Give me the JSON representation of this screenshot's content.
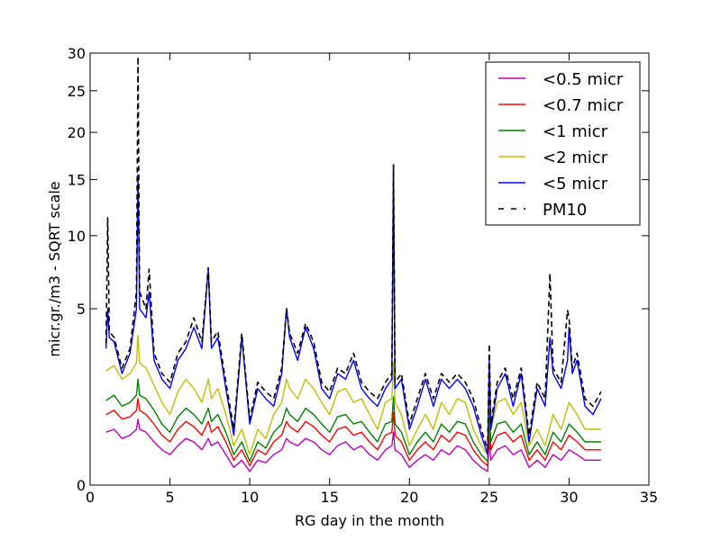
{
  "chart_data": {
    "type": "line",
    "title": "",
    "xlabel": "RG day in the month",
    "ylabel": "micr.gr./m3 - SQRT scale",
    "y_scale": "sqrt",
    "xlim": [
      0,
      35
    ],
    "ylim": [
      0,
      30
    ],
    "x_ticks": [
      0,
      5,
      10,
      15,
      20,
      25,
      30,
      35
    ],
    "y_ticks": [
      0,
      5,
      10,
      15,
      20,
      25,
      30
    ],
    "grid": false,
    "legend_position": "top-right",
    "series": [
      {
        "name": "<0.5 micr",
        "color": "#bf00bf",
        "dash": "solid",
        "x": [
          1.0,
          1.5,
          2.0,
          2.5,
          2.9,
          3.0,
          3.1,
          3.5,
          4.0,
          4.5,
          5.0,
          5.5,
          6.0,
          6.5,
          7.0,
          7.4,
          7.6,
          8.0,
          8.5,
          9.0,
          9.5,
          10.0,
          10.5,
          11.0,
          11.5,
          12.0,
          12.3,
          12.5,
          13.0,
          13.5,
          14.0,
          14.5,
          15.0,
          15.5,
          16.0,
          16.5,
          17.0,
          17.5,
          18.0,
          18.5,
          18.9,
          19.0,
          19.1,
          19.5,
          20.0,
          20.5,
          21.0,
          21.5,
          22.0,
          22.5,
          23.0,
          23.5,
          24.0,
          24.5,
          24.9,
          25.0,
          25.1,
          25.5,
          26.0,
          26.5,
          27.0,
          27.5,
          28.0,
          28.5,
          29.0,
          29.5,
          30.0,
          30.5,
          31.0,
          31.5,
          32.0
        ],
        "y": [
          0.45,
          0.5,
          0.35,
          0.4,
          0.5,
          0.7,
          0.5,
          0.45,
          0.3,
          0.2,
          0.15,
          0.25,
          0.35,
          0.3,
          0.2,
          0.35,
          0.25,
          0.3,
          0.15,
          0.05,
          0.1,
          0.03,
          0.1,
          0.08,
          0.15,
          0.2,
          0.35,
          0.3,
          0.25,
          0.35,
          0.3,
          0.2,
          0.15,
          0.25,
          0.3,
          0.2,
          0.25,
          0.15,
          0.1,
          0.2,
          0.25,
          0.45,
          0.2,
          0.15,
          0.05,
          0.1,
          0.15,
          0.1,
          0.2,
          0.15,
          0.25,
          0.2,
          0.1,
          0.05,
          0.03,
          0.35,
          0.1,
          0.2,
          0.25,
          0.15,
          0.2,
          0.05,
          0.1,
          0.05,
          0.15,
          0.1,
          0.2,
          0.15,
          0.1,
          0.1,
          0.1
        ]
      },
      {
        "name": "<0.7 micr",
        "color": "#ff0000",
        "dash": "solid",
        "x": [
          1.0,
          1.5,
          2.0,
          2.5,
          2.9,
          3.0,
          3.1,
          3.5,
          4.0,
          4.5,
          5.0,
          5.5,
          6.0,
          6.5,
          7.0,
          7.4,
          7.6,
          8.0,
          8.5,
          9.0,
          9.5,
          10.0,
          10.5,
          11.0,
          11.5,
          12.0,
          12.3,
          12.5,
          13.0,
          13.5,
          14.0,
          14.5,
          15.0,
          15.5,
          16.0,
          16.5,
          17.0,
          17.5,
          18.0,
          18.5,
          18.9,
          19.0,
          19.1,
          19.5,
          20.0,
          20.5,
          21.0,
          21.5,
          22.0,
          22.5,
          23.0,
          23.5,
          24.0,
          24.5,
          24.9,
          25.0,
          25.1,
          25.5,
          26.0,
          26.5,
          27.0,
          27.5,
          28.0,
          28.5,
          29.0,
          29.5,
          30.0,
          30.5,
          31.0,
          31.5,
          32.0
        ],
        "y": [
          0.8,
          0.9,
          0.7,
          0.75,
          0.9,
          1.2,
          0.9,
          0.8,
          0.6,
          0.4,
          0.3,
          0.5,
          0.65,
          0.55,
          0.4,
          0.65,
          0.45,
          0.55,
          0.3,
          0.1,
          0.2,
          0.06,
          0.2,
          0.15,
          0.3,
          0.4,
          0.65,
          0.55,
          0.45,
          0.65,
          0.55,
          0.4,
          0.3,
          0.5,
          0.55,
          0.4,
          0.45,
          0.3,
          0.2,
          0.4,
          0.45,
          0.85,
          0.4,
          0.3,
          0.1,
          0.2,
          0.3,
          0.2,
          0.4,
          0.3,
          0.45,
          0.4,
          0.2,
          0.1,
          0.06,
          0.65,
          0.2,
          0.4,
          0.45,
          0.3,
          0.4,
          0.1,
          0.2,
          0.1,
          0.3,
          0.2,
          0.4,
          0.3,
          0.2,
          0.2,
          0.2
        ]
      },
      {
        "name": "<1 micr",
        "color": "#008000",
        "dash": "solid",
        "x": [
          1.0,
          1.5,
          2.0,
          2.5,
          2.9,
          3.0,
          3.1,
          3.5,
          4.0,
          4.5,
          5.0,
          5.5,
          6.0,
          6.5,
          7.0,
          7.4,
          7.6,
          8.0,
          8.5,
          9.0,
          9.5,
          10.0,
          10.5,
          11.0,
          11.5,
          12.0,
          12.3,
          12.5,
          13.0,
          13.5,
          14.0,
          14.5,
          15.0,
          15.5,
          16.0,
          16.5,
          17.0,
          17.5,
          18.0,
          18.5,
          18.9,
          19.0,
          19.1,
          19.5,
          20.0,
          20.5,
          21.0,
          21.5,
          22.0,
          22.5,
          23.0,
          23.5,
          24.0,
          24.5,
          24.9,
          25.0,
          25.1,
          25.5,
          26.0,
          26.5,
          27.0,
          27.5,
          28.0,
          28.5,
          29.0,
          29.5,
          30.0,
          30.5,
          31.0,
          31.5,
          32.0
        ],
        "y": [
          1.15,
          1.3,
          1.0,
          1.1,
          1.3,
          1.8,
          1.3,
          1.2,
          0.9,
          0.6,
          0.45,
          0.75,
          0.95,
          0.8,
          0.6,
          0.95,
          0.65,
          0.8,
          0.45,
          0.15,
          0.3,
          0.09,
          0.3,
          0.22,
          0.45,
          0.6,
          0.95,
          0.8,
          0.65,
          0.95,
          0.8,
          0.6,
          0.45,
          0.75,
          0.8,
          0.6,
          0.65,
          0.45,
          0.3,
          0.6,
          0.65,
          1.25,
          0.6,
          0.45,
          0.15,
          0.3,
          0.45,
          0.3,
          0.6,
          0.45,
          0.65,
          0.6,
          0.3,
          0.15,
          0.09,
          0.95,
          0.3,
          0.6,
          0.65,
          0.45,
          0.6,
          0.15,
          0.3,
          0.15,
          0.45,
          0.3,
          0.6,
          0.45,
          0.3,
          0.3,
          0.3
        ]
      },
      {
        "name": "<2 micr",
        "color": "#bfbf00",
        "dash": "solid",
        "x": [
          1.0,
          1.5,
          2.0,
          2.5,
          2.9,
          3.0,
          3.1,
          3.5,
          4.0,
          4.5,
          5.0,
          5.5,
          6.0,
          6.5,
          7.0,
          7.4,
          7.6,
          8.0,
          8.5,
          9.0,
          9.5,
          10.0,
          10.5,
          11.0,
          11.5,
          12.0,
          12.3,
          12.5,
          13.0,
          13.5,
          14.0,
          14.5,
          15.0,
          15.5,
          16.0,
          16.5,
          17.0,
          17.5,
          18.0,
          18.5,
          18.9,
          19.0,
          19.1,
          19.5,
          20.0,
          20.5,
          21.0,
          21.5,
          22.0,
          22.5,
          23.0,
          23.5,
          24.0,
          24.5,
          24.9,
          25.0,
          25.1,
          25.5,
          26.0,
          26.5,
          27.0,
          27.5,
          28.0,
          28.5,
          29.0,
          29.5,
          30.0,
          30.5,
          31.0,
          31.5,
          32.0
        ],
        "y": [
          2.1,
          2.3,
          1.8,
          2.0,
          2.4,
          3.6,
          2.4,
          2.2,
          1.6,
          1.1,
          0.8,
          1.4,
          1.8,
          1.5,
          1.1,
          1.8,
          1.2,
          1.5,
          0.8,
          0.25,
          0.5,
          0.15,
          0.5,
          0.35,
          0.8,
          1.1,
          1.8,
          1.5,
          1.2,
          1.8,
          1.5,
          1.1,
          0.8,
          1.4,
          1.5,
          1.1,
          1.2,
          0.8,
          0.5,
          1.1,
          1.2,
          2.4,
          1.1,
          0.8,
          0.25,
          0.5,
          0.8,
          0.5,
          1.1,
          0.8,
          1.2,
          1.1,
          0.5,
          0.25,
          0.15,
          1.8,
          0.5,
          1.1,
          1.2,
          0.8,
          1.1,
          0.25,
          0.5,
          0.25,
          0.8,
          0.5,
          1.1,
          0.8,
          0.5,
          0.5,
          0.5
        ]
      },
      {
        "name": "<5 micr",
        "color": "#0000ff",
        "dash": "solid",
        "x": [
          1.0,
          1.1,
          1.2,
          1.5,
          2.0,
          2.5,
          2.9,
          3.0,
          3.1,
          3.5,
          3.7,
          4.0,
          4.5,
          5.0,
          5.5,
          6.0,
          6.5,
          7.0,
          7.4,
          7.6,
          8.0,
          8.5,
          9.0,
          9.5,
          10.0,
          10.5,
          11.0,
          11.5,
          12.0,
          12.3,
          12.5,
          13.0,
          13.5,
          14.0,
          14.5,
          15.0,
          15.5,
          16.0,
          16.5,
          17.0,
          17.5,
          18.0,
          18.5,
          18.9,
          19.0,
          19.1,
          19.5,
          20.0,
          20.5,
          21.0,
          21.5,
          22.0,
          22.5,
          23.0,
          23.5,
          24.0,
          24.5,
          24.9,
          25.0,
          25.1,
          25.5,
          26.0,
          26.5,
          27.0,
          27.5,
          28.0,
          28.5,
          28.8,
          29.0,
          29.5,
          29.9,
          30.0,
          30.2,
          30.5,
          31.0,
          31.5,
          32.0
        ],
        "y": [
          3.0,
          5.0,
          3.5,
          3.3,
          2.0,
          2.8,
          5.0,
          15.5,
          5.0,
          4.5,
          6.0,
          2.5,
          1.8,
          1.5,
          2.5,
          3.0,
          4.0,
          3.0,
          7.5,
          3.0,
          3.5,
          1.5,
          0.4,
          3.5,
          0.6,
          1.5,
          1.2,
          1.0,
          2.0,
          5.0,
          3.5,
          2.5,
          4.0,
          3.0,
          1.5,
          1.2,
          2.0,
          1.8,
          2.5,
          1.5,
          1.2,
          1.0,
          1.5,
          1.8,
          16.5,
          1.5,
          1.8,
          0.5,
          1.0,
          1.8,
          1.0,
          1.8,
          1.5,
          1.8,
          1.5,
          1.0,
          0.4,
          0.15,
          2.5,
          0.5,
          1.5,
          2.0,
          1.0,
          2.0,
          0.3,
          1.5,
          1.0,
          3.5,
          2.0,
          1.5,
          2.5,
          4.0,
          2.0,
          2.5,
          1.0,
          0.8,
          1.2
        ]
      },
      {
        "name": "PM10",
        "color": "#000000",
        "dash": "dashed",
        "x": [
          1.0,
          1.1,
          1.2,
          1.5,
          2.0,
          2.5,
          2.9,
          3.0,
          3.1,
          3.5,
          3.7,
          4.0,
          4.5,
          5.0,
          5.5,
          6.0,
          6.5,
          7.0,
          7.4,
          7.6,
          8.0,
          8.5,
          9.0,
          9.5,
          10.0,
          10.5,
          11.0,
          11.5,
          12.0,
          12.3,
          12.5,
          13.0,
          13.5,
          14.0,
          14.5,
          15.0,
          15.5,
          16.0,
          16.5,
          17.0,
          17.5,
          18.0,
          18.5,
          18.9,
          19.0,
          19.1,
          19.5,
          20.0,
          20.5,
          21.0,
          21.5,
          22.0,
          22.5,
          23.0,
          23.5,
          24.0,
          24.5,
          24.9,
          25.0,
          25.1,
          25.5,
          26.0,
          26.5,
          27.0,
          27.5,
          28.0,
          28.5,
          28.8,
          29.0,
          29.5,
          29.9,
          30.0,
          30.2,
          30.5,
          31.0,
          31.5,
          32.0
        ],
        "y": [
          3.2,
          11.5,
          3.8,
          3.5,
          2.2,
          3.0,
          6.0,
          29.5,
          6.0,
          5.0,
          7.5,
          2.8,
          2.0,
          1.7,
          2.8,
          3.3,
          4.5,
          3.3,
          7.6,
          3.3,
          3.8,
          1.7,
          0.5,
          3.7,
          0.7,
          1.7,
          1.4,
          1.2,
          2.2,
          5.0,
          3.7,
          2.8,
          4.2,
          3.3,
          1.7,
          1.4,
          2.2,
          2.0,
          2.8,
          1.7,
          1.4,
          1.2,
          1.7,
          2.0,
          16.5,
          1.7,
          2.0,
          0.6,
          1.2,
          2.0,
          1.2,
          2.0,
          1.7,
          2.0,
          1.7,
          1.2,
          0.5,
          0.2,
          3.2,
          0.6,
          1.7,
          2.2,
          1.2,
          2.2,
          0.4,
          1.7,
          1.2,
          7.2,
          2.2,
          1.7,
          4.9,
          4.5,
          2.2,
          2.8,
          1.2,
          1.0,
          1.4
        ]
      }
    ]
  }
}
